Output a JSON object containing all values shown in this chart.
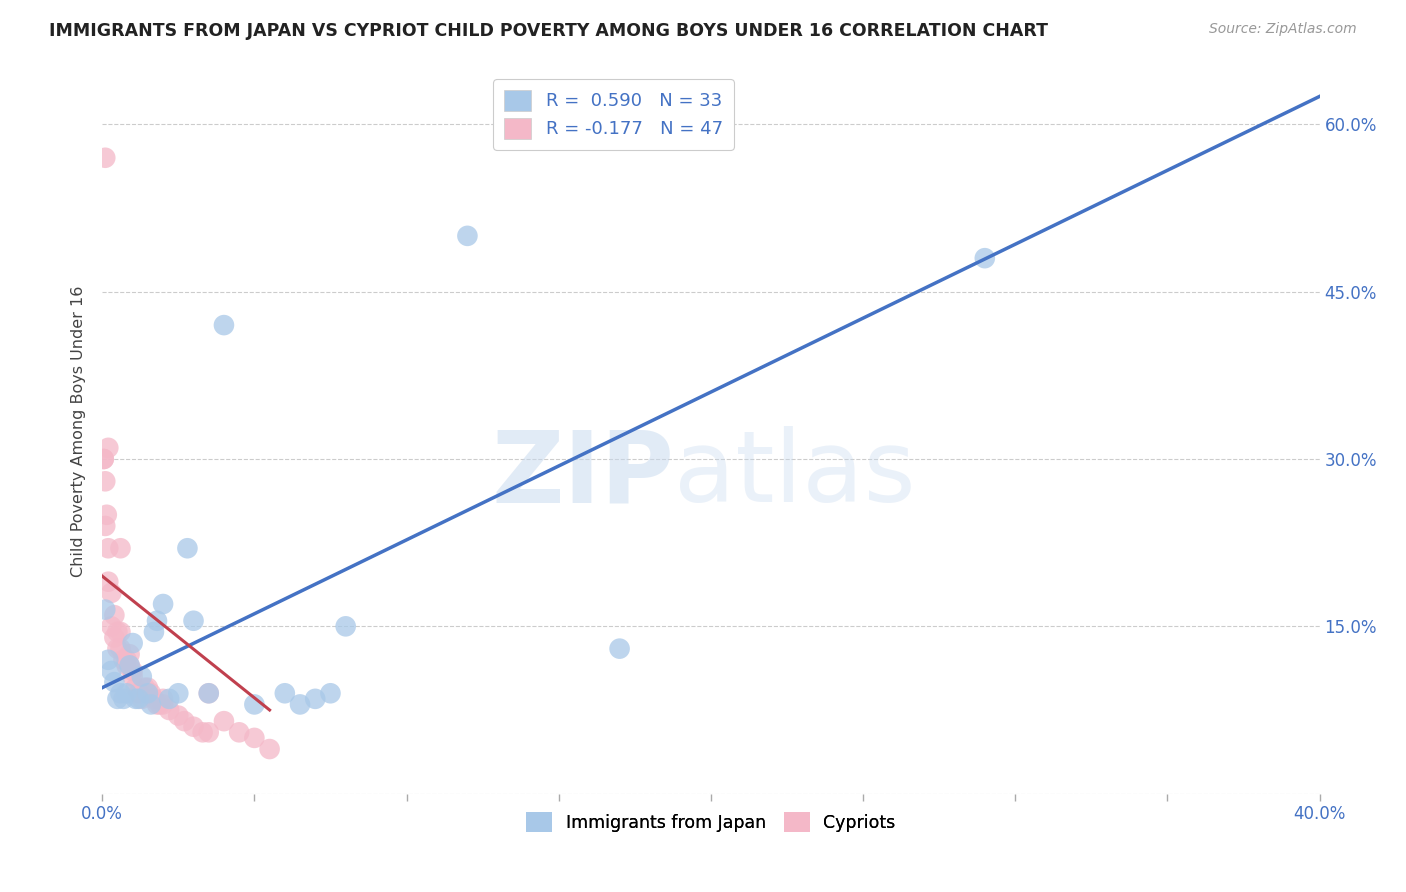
{
  "title": "IMMIGRANTS FROM JAPAN VS CYPRIOT CHILD POVERTY AMONG BOYS UNDER 16 CORRELATION CHART",
  "source": "Source: ZipAtlas.com",
  "ylabel": "Child Poverty Among Boys Under 16",
  "watermark_zip": "ZIP",
  "watermark_atlas": "atlas",
  "xlim": [
    0.0,
    0.4
  ],
  "ylim": [
    0.0,
    0.65
  ],
  "xticks": [
    0.0,
    0.05,
    0.1,
    0.15,
    0.2,
    0.25,
    0.3,
    0.35,
    0.4
  ],
  "xticklabels": [
    "0.0%",
    "",
    "",
    "",
    "",
    "",
    "",
    "",
    "40.0%"
  ],
  "yticks": [
    0.0,
    0.15,
    0.3,
    0.45,
    0.6
  ],
  "yticklabels_right": [
    "",
    "15.0%",
    "30.0%",
    "45.0%",
    "60.0%"
  ],
  "blue_R": 0.59,
  "blue_N": 33,
  "pink_R": -0.177,
  "pink_N": 47,
  "blue_color": "#a8c8e8",
  "pink_color": "#f4b8c8",
  "line_blue": "#4472c4",
  "line_pink": "#c0404e",
  "blue_line_x0": 0.0,
  "blue_line_y0": 0.095,
  "blue_line_x1": 0.4,
  "blue_line_y1": 0.625,
  "pink_line_x0": 0.0,
  "pink_line_y0": 0.195,
  "pink_line_x1": 0.055,
  "pink_line_y1": 0.075,
  "blue_scatter_x": [
    0.001,
    0.002,
    0.003,
    0.004,
    0.005,
    0.006,
    0.007,
    0.008,
    0.009,
    0.01,
    0.011,
    0.012,
    0.013,
    0.015,
    0.016,
    0.017,
    0.018,
    0.02,
    0.022,
    0.025,
    0.028,
    0.03,
    0.035,
    0.04,
    0.05,
    0.06,
    0.065,
    0.07,
    0.075,
    0.08,
    0.12,
    0.17,
    0.29
  ],
  "blue_scatter_y": [
    0.165,
    0.12,
    0.11,
    0.1,
    0.085,
    0.09,
    0.085,
    0.09,
    0.115,
    0.135,
    0.085,
    0.085,
    0.105,
    0.09,
    0.08,
    0.145,
    0.155,
    0.17,
    0.085,
    0.09,
    0.22,
    0.155,
    0.09,
    0.42,
    0.08,
    0.09,
    0.08,
    0.085,
    0.09,
    0.15,
    0.5,
    0.13,
    0.48
  ],
  "pink_scatter_x": [
    0.0005,
    0.0005,
    0.001,
    0.001,
    0.001,
    0.0015,
    0.002,
    0.002,
    0.002,
    0.003,
    0.003,
    0.004,
    0.004,
    0.005,
    0.005,
    0.006,
    0.006,
    0.006,
    0.007,
    0.008,
    0.008,
    0.009,
    0.009,
    0.01,
    0.01,
    0.011,
    0.012,
    0.013,
    0.014,
    0.015,
    0.016,
    0.017,
    0.018,
    0.019,
    0.02,
    0.02,
    0.022,
    0.025,
    0.027,
    0.03,
    0.033,
    0.035,
    0.035,
    0.04,
    0.045,
    0.05,
    0.055
  ],
  "pink_scatter_y": [
    0.3,
    0.3,
    0.57,
    0.24,
    0.28,
    0.25,
    0.22,
    0.19,
    0.31,
    0.18,
    0.15,
    0.16,
    0.14,
    0.145,
    0.13,
    0.145,
    0.13,
    0.22,
    0.12,
    0.12,
    0.115,
    0.125,
    0.115,
    0.11,
    0.105,
    0.095,
    0.09,
    0.085,
    0.095,
    0.095,
    0.09,
    0.085,
    0.08,
    0.08,
    0.085,
    0.08,
    0.075,
    0.07,
    0.065,
    0.06,
    0.055,
    0.055,
    0.09,
    0.065,
    0.055,
    0.05,
    0.04
  ],
  "background_color": "#ffffff",
  "grid_color": "#cccccc"
}
